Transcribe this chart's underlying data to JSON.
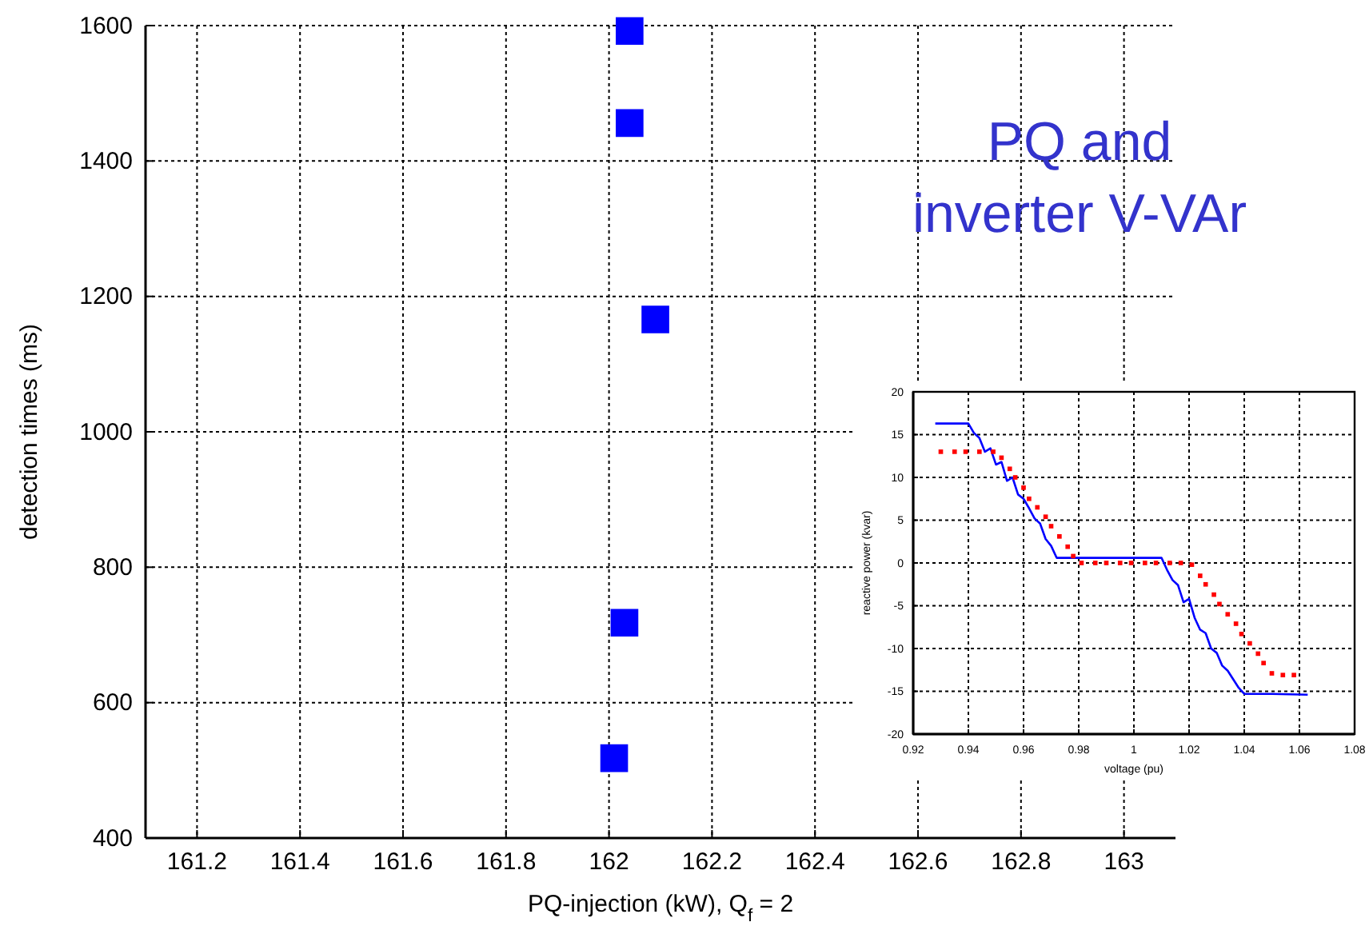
{
  "chart_data": [
    {
      "type": "scatter",
      "xlabel": "PQ-injection (kW), Q$_{f}$ = 2",
      "ylabel": "detection times (ms)",
      "annotations": [
        "PQ and inverter V-VAr"
      ],
      "xlim": [
        161.1,
        163.1
      ],
      "ylim": [
        400,
        1600
      ],
      "xticks": [
        161.2,
        161.4,
        161.6,
        161.8,
        162,
        162.2,
        162.4,
        162.6,
        162.8,
        163
      ],
      "yticks": [
        400,
        600,
        800,
        1000,
        1200,
        1400,
        1600
      ],
      "grid": true,
      "marker": "square",
      "series": [
        {
          "color": "#0000ff",
          "x": [
            162.04,
            162.04,
            162.09,
            162.03,
            162.01
          ],
          "values": [
            1592,
            1456,
            1166,
            718,
            518
          ]
        }
      ]
    },
    {
      "type": "line",
      "xlabel": "voltage (pu)",
      "ylabel": "reactive power (kvar)",
      "xlim": [
        0.92,
        1.08
      ],
      "ylim": [
        -20,
        20
      ],
      "xticks": [
        {
          "value": 0.92,
          "label": "0.92"
        },
        {
          "value": 0.94,
          "label": "0.94"
        },
        {
          "value": 0.96,
          "label": "0.96"
        },
        {
          "value": 0.98,
          "label": "0.98"
        },
        1,
        1.02,
        1.04,
        1.06,
        1.08
      ],
      "yticks": [
        -20,
        -15,
        -10,
        -5,
        0,
        5,
        10,
        15,
        20
      ],
      "grid": true,
      "series": [
        {
          "color": "#0000ff",
          "x": [
            0.928,
            0.94,
            0.942,
            0.944,
            0.946,
            0.948,
            0.95,
            0.952,
            0.954,
            0.956,
            0.958,
            0.96,
            0.962,
            0.964,
            0.966,
            0.968,
            0.97,
            0.972,
            0.99,
            1.01,
            1.012,
            1.014,
            1.016,
            1.018,
            1.02,
            1.022,
            1.024,
            1.026,
            1.028,
            1.03,
            1.032,
            1.034,
            1.036,
            1.038,
            1.04,
            1.05,
            1.063
          ],
          "values": [
            16.3,
            16.3,
            15.2,
            14.6,
            13.0,
            13.4,
            11.5,
            11.8,
            9.6,
            10.0,
            8.0,
            7.5,
            6.4,
            5.2,
            4.6,
            2.8,
            2.0,
            0.6,
            0.6,
            0.6,
            -0.8,
            -2.0,
            -2.6,
            -4.6,
            -4.2,
            -6.4,
            -7.8,
            -8.2,
            -10.0,
            -10.5,
            -12.0,
            -12.6,
            -13.6,
            -14.6,
            -15.3,
            -15.3,
            -15.4
          ]
        },
        {
          "type": "scatter",
          "marker": "square",
          "color": "#ff0000",
          "x": [
            0.93,
            0.935,
            0.939,
            0.944,
            0.949,
            0.952,
            0.955,
            0.957,
            0.96,
            0.962,
            0.965,
            0.968,
            0.97,
            0.973,
            0.976,
            0.978,
            0.981,
            0.986,
            0.99,
            0.995,
            0.999,
            1.004,
            1.008,
            1.013,
            1.017,
            1.021,
            1.024,
            1.026,
            1.029,
            1.031,
            1.034,
            1.037,
            1.039,
            1.042,
            1.045,
            1.047,
            1.05,
            1.054,
            1.058
          ],
          "values": [
            13,
            13,
            13,
            13,
            13,
            12.3,
            11,
            10,
            8.8,
            7.5,
            6.5,
            5.4,
            4.3,
            3.1,
            1.9,
            0.8,
            0,
            0,
            0,
            0,
            0,
            0,
            0,
            0,
            0,
            -0.2,
            -1.5,
            -2.5,
            -3.7,
            -4.8,
            -6,
            -7.1,
            -8.3,
            -9.4,
            -10.6,
            -11.7,
            -12.9,
            -13.1,
            -13.1
          ]
        }
      ]
    }
  ]
}
